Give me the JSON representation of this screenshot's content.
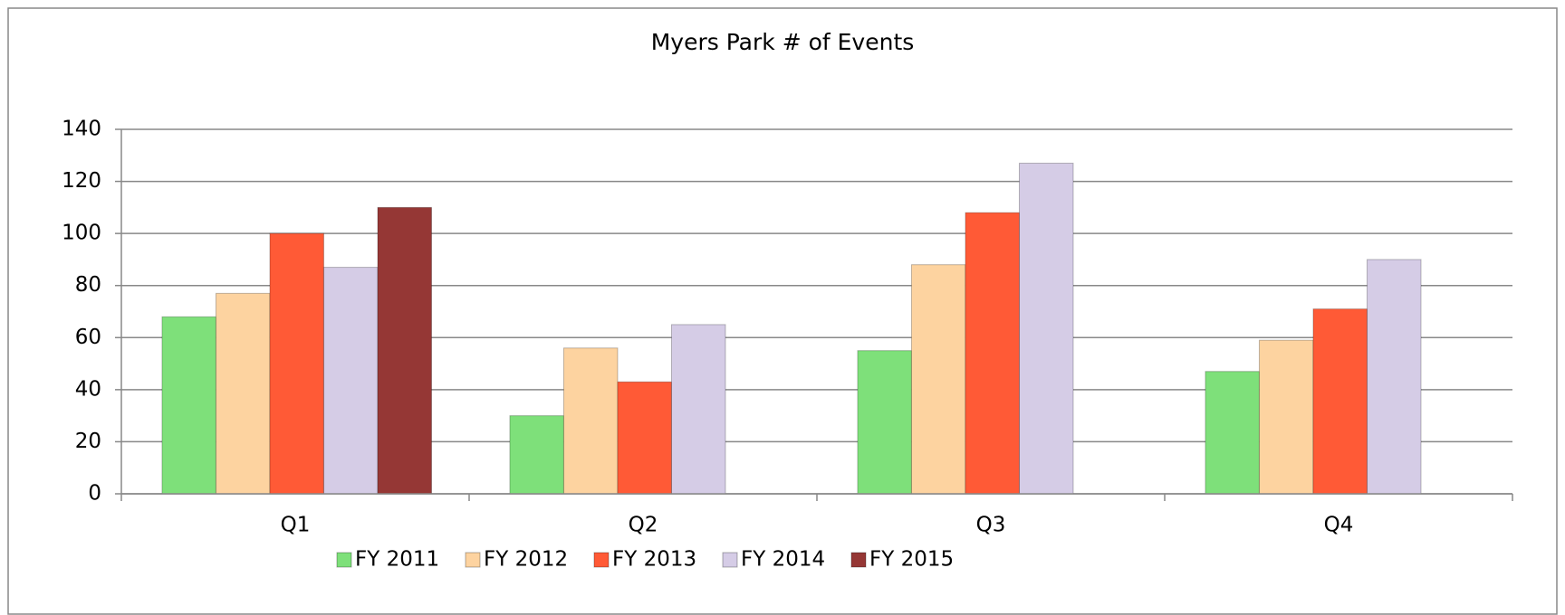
{
  "chart_data": {
    "type": "bar",
    "title": "Myers Park # of Events",
    "categories": [
      "Q1",
      "Q2",
      "Q3",
      "Q4"
    ],
    "series": [
      {
        "name": "FY 2011",
        "color": "#7ee07a",
        "values": [
          68,
          30,
          55,
          47
        ]
      },
      {
        "name": "FY 2012",
        "color": "#fdd3a0",
        "values": [
          77,
          56,
          88,
          59
        ]
      },
      {
        "name": "FY 2013",
        "color": "#ff5a36",
        "values": [
          100,
          43,
          108,
          71
        ]
      },
      {
        "name": "FY 2014",
        "color": "#d5cce6",
        "values": [
          87,
          65,
          127,
          90
        ]
      },
      {
        "name": "FY 2015",
        "color": "#953735",
        "values": [
          110,
          null,
          null,
          null
        ]
      }
    ],
    "ylim": [
      0,
      140
    ],
    "yticks": [
      0,
      20,
      40,
      60,
      80,
      100,
      120,
      140
    ],
    "grid": true,
    "legend": "bottom"
  }
}
